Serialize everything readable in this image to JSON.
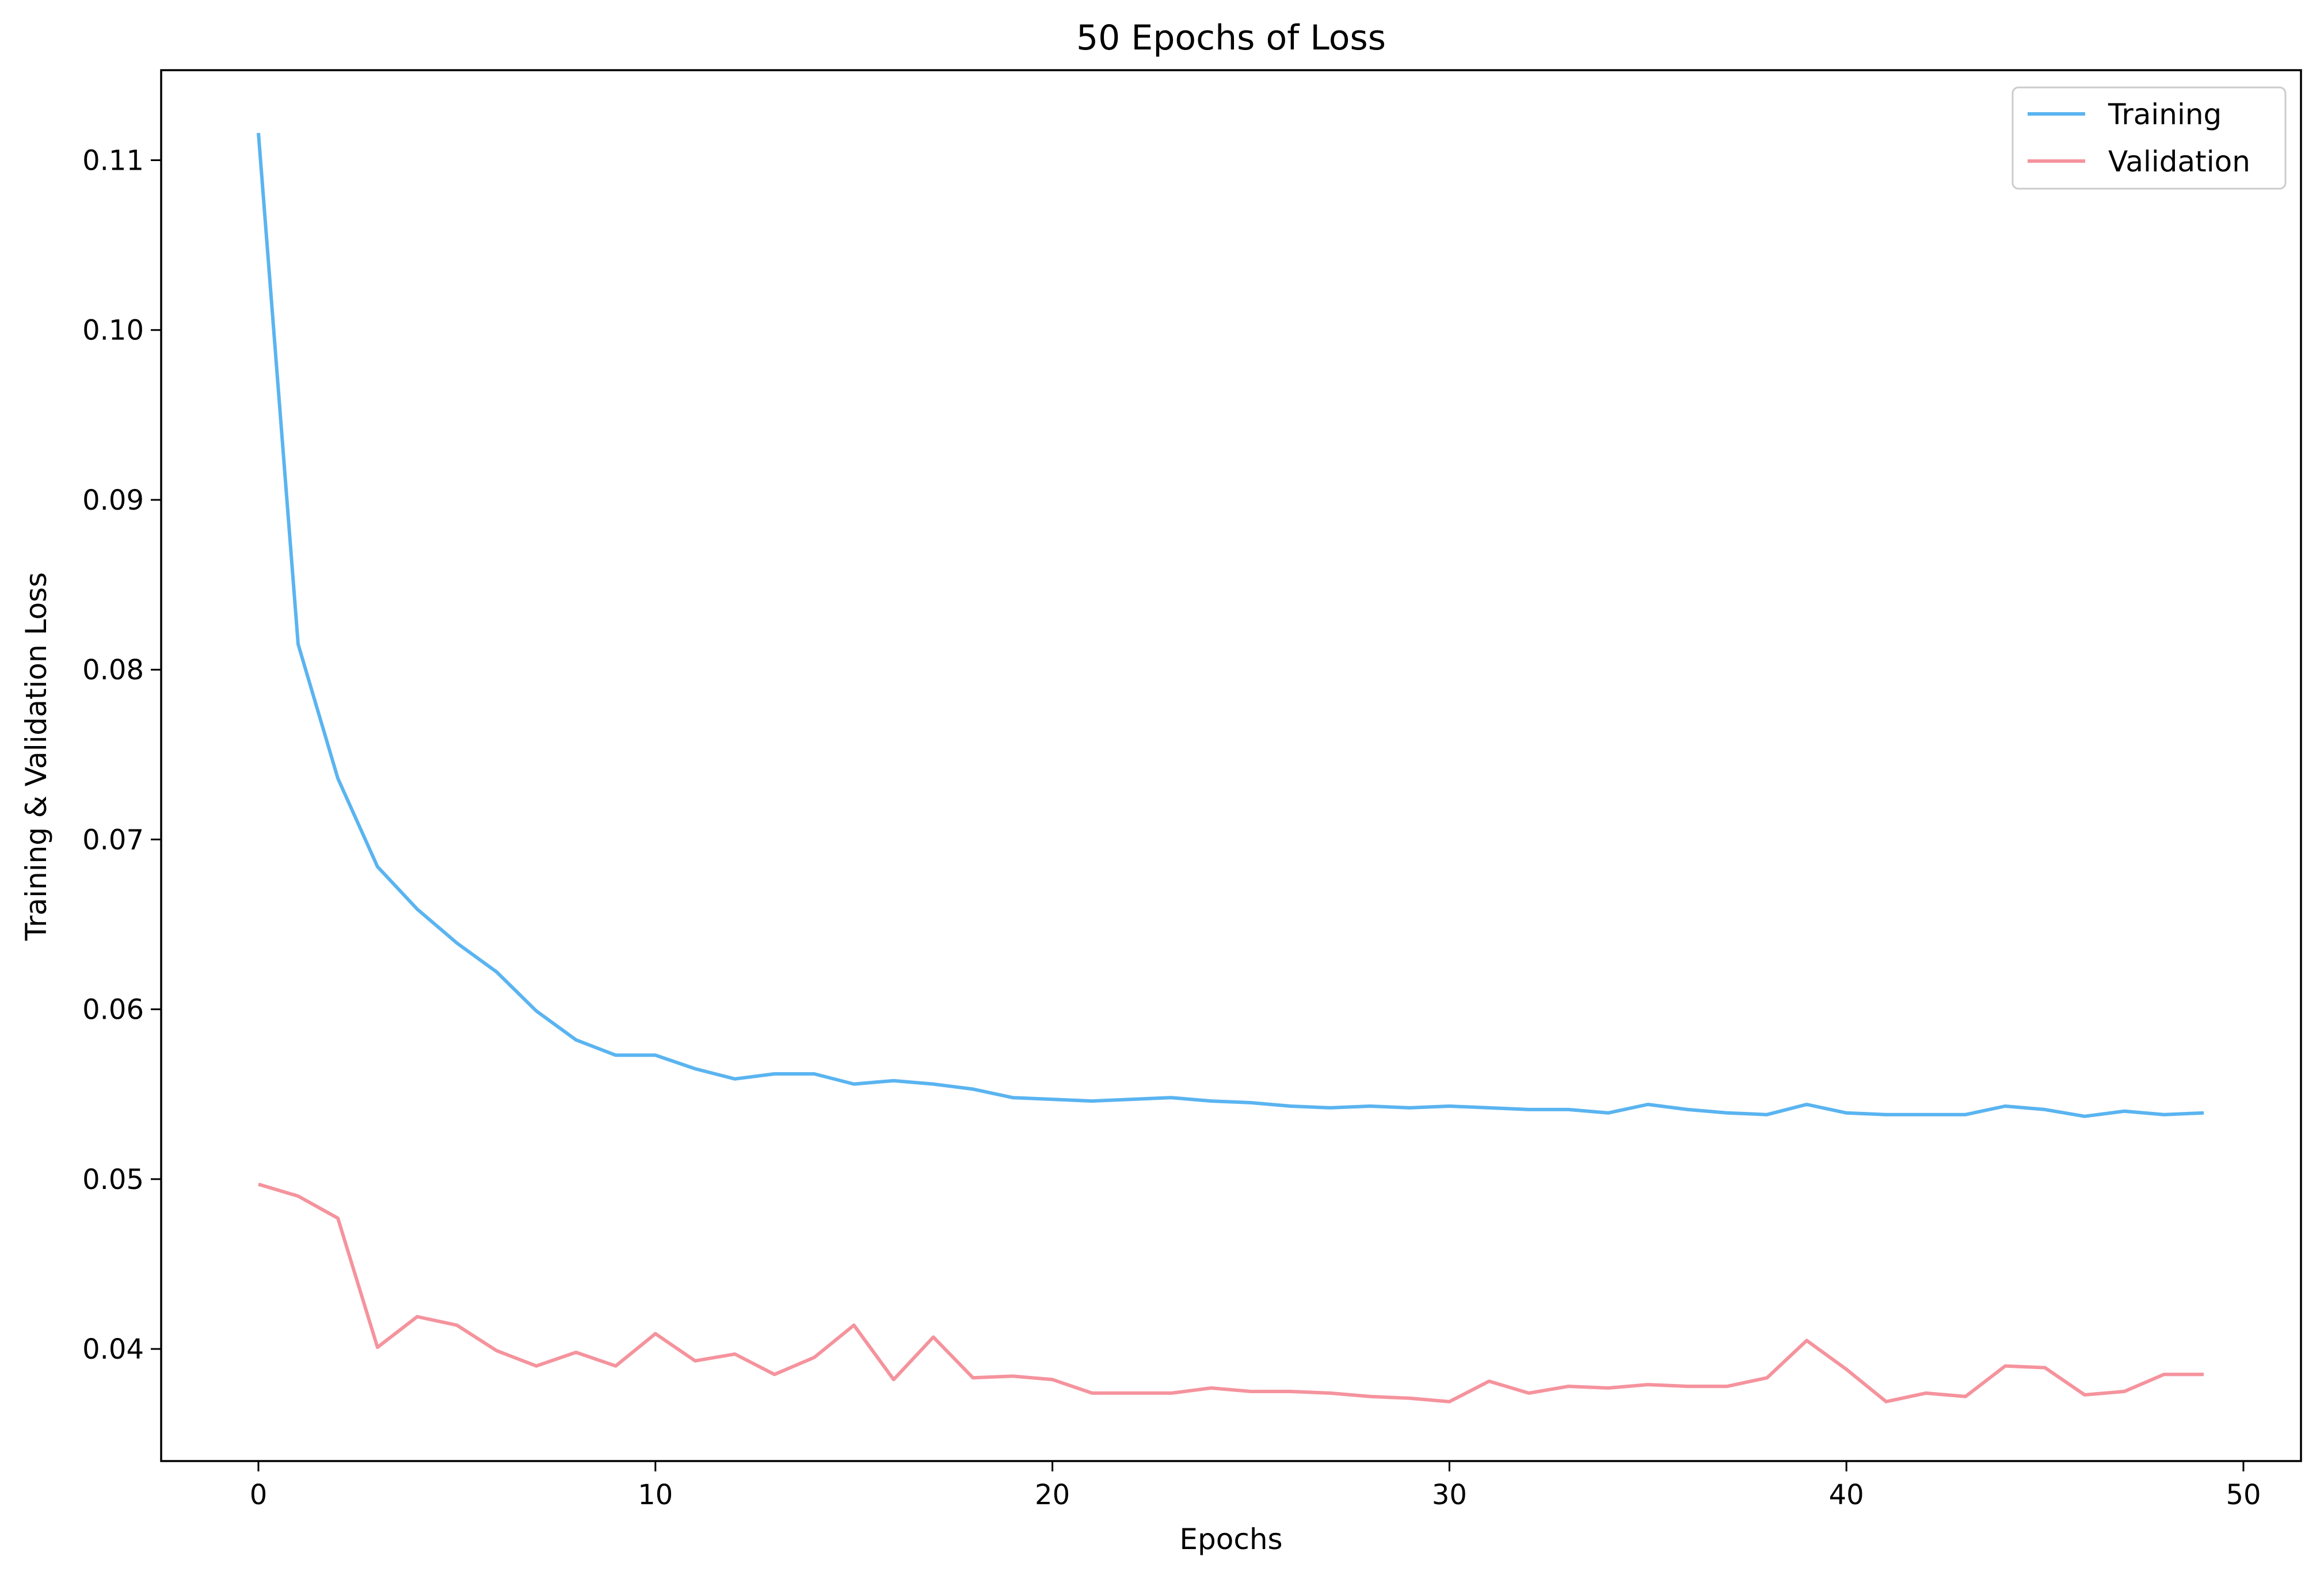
{
  "chart_data": {
    "type": "line",
    "title": "50 Epochs of Loss",
    "xlabel": "Epochs",
    "ylabel": "Training & Validation Loss",
    "xlim": [
      -2.45,
      51.45
    ],
    "ylim": [
      0.0334,
      0.1153
    ],
    "xticks": [
      0,
      10,
      20,
      30,
      40,
      50
    ],
    "xtick_labels": [
      "0",
      "10",
      "20",
      "30",
      "40",
      "50"
    ],
    "yticks": [
      0.04,
      0.05,
      0.06,
      0.07,
      0.08,
      0.09,
      0.1,
      0.11
    ],
    "ytick_labels": [
      "0.04",
      "0.05",
      "0.06",
      "0.07",
      "0.08",
      "0.09",
      "0.10",
      "0.11"
    ],
    "grid": false,
    "legend_position": "top-right",
    "x": [
      0,
      1,
      2,
      3,
      4,
      5,
      6,
      7,
      8,
      9,
      10,
      11,
      12,
      13,
      14,
      15,
      16,
      17,
      18,
      19,
      20,
      21,
      22,
      23,
      24,
      25,
      26,
      27,
      28,
      29,
      30,
      31,
      32,
      33,
      34,
      35,
      36,
      37,
      38,
      39,
      40,
      41,
      42,
      43,
      44,
      45,
      46,
      47,
      48,
      49
    ],
    "series": [
      {
        "name": "Training",
        "color": "#5ab4f0",
        "values": [
          0.1116,
          0.0815,
          0.0736,
          0.0684,
          0.0659,
          0.0639,
          0.0622,
          0.0599,
          0.0582,
          0.0573,
          0.0573,
          0.0565,
          0.0559,
          0.0562,
          0.0562,
          0.0556,
          0.0558,
          0.0556,
          0.0553,
          0.0548,
          0.0547,
          0.0546,
          0.0547,
          0.0548,
          0.0546,
          0.0545,
          0.0543,
          0.0542,
          0.0543,
          0.0542,
          0.0543,
          0.0542,
          0.0541,
          0.0541,
          0.0539,
          0.0544,
          0.0541,
          0.0539,
          0.0538,
          0.0544,
          0.0539,
          0.0538,
          0.0538,
          0.0538,
          0.0543,
          0.0541,
          0.0537,
          0.054,
          0.0538,
          0.0539
        ]
      },
      {
        "name": "Validation",
        "color": "#f5939d",
        "values": [
          0.0497,
          0.049,
          0.0477,
          0.0401,
          0.0419,
          0.0414,
          0.0399,
          0.039,
          0.0398,
          0.039,
          0.0409,
          0.0393,
          0.0397,
          0.0385,
          0.0395,
          0.0414,
          0.0382,
          0.0407,
          0.0383,
          0.0384,
          0.0382,
          0.0374,
          0.0374,
          0.0374,
          0.0377,
          0.0375,
          0.0375,
          0.0374,
          0.0372,
          0.0371,
          0.0369,
          0.0381,
          0.0374,
          0.0378,
          0.0377,
          0.0379,
          0.0378,
          0.0378,
          0.0383,
          0.0405,
          0.0388,
          0.0369,
          0.0374,
          0.0372,
          0.039,
          0.0389,
          0.0373,
          0.0375,
          0.0385,
          0.0385
        ]
      }
    ]
  }
}
